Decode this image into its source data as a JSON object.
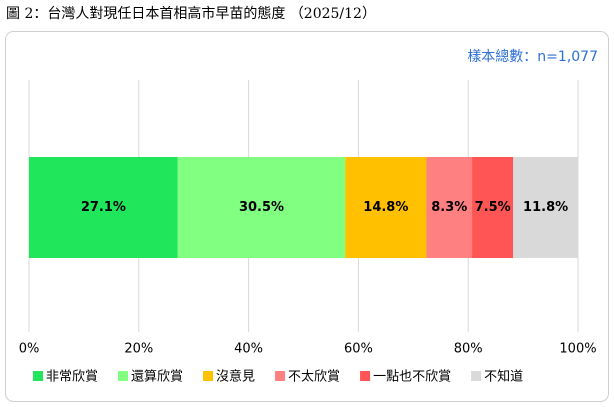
{
  "chart_data": {
    "type": "bar",
    "orientation": "horizontal",
    "stacked": true,
    "title": "圖 2：台灣人對現任日本首相高市早苗的態度 （2025/12）",
    "subtitle": "樣本總數：n=1,077",
    "xlim": [
      0,
      100
    ],
    "xticks": [
      {
        "value": 0,
        "label": "0%"
      },
      {
        "value": 20,
        "label": "20%"
      },
      {
        "value": 40,
        "label": "40%"
      },
      {
        "value": 60,
        "label": "60%"
      },
      {
        "value": 80,
        "label": "80%"
      },
      {
        "value": 100,
        "label": "100%"
      }
    ],
    "grid": true,
    "legend": "bottom",
    "series": [
      {
        "name": "非常欣賞",
        "color": "#1fe65a",
        "values": [
          27.1
        ],
        "value_labels": [
          "27.1%"
        ]
      },
      {
        "name": "還算欣賞",
        "color": "#80ff80",
        "values": [
          30.5
        ],
        "value_labels": [
          "30.5%"
        ]
      },
      {
        "name": "沒意見",
        "color": "#ffc000",
        "values": [
          14.8
        ],
        "value_labels": [
          "14.8%"
        ]
      },
      {
        "name": "不太欣賞",
        "color": "#ff8080",
        "values": [
          8.3
        ],
        "value_labels": [
          "8.3%"
        ]
      },
      {
        "name": "一點也不欣賞",
        "color": "#ff5555",
        "values": [
          7.5
        ],
        "value_labels": [
          "7.5%"
        ]
      },
      {
        "name": "不知道",
        "color": "#d9d9d9",
        "values": [
          11.8
        ],
        "value_labels": [
          "11.8%"
        ]
      }
    ]
  }
}
